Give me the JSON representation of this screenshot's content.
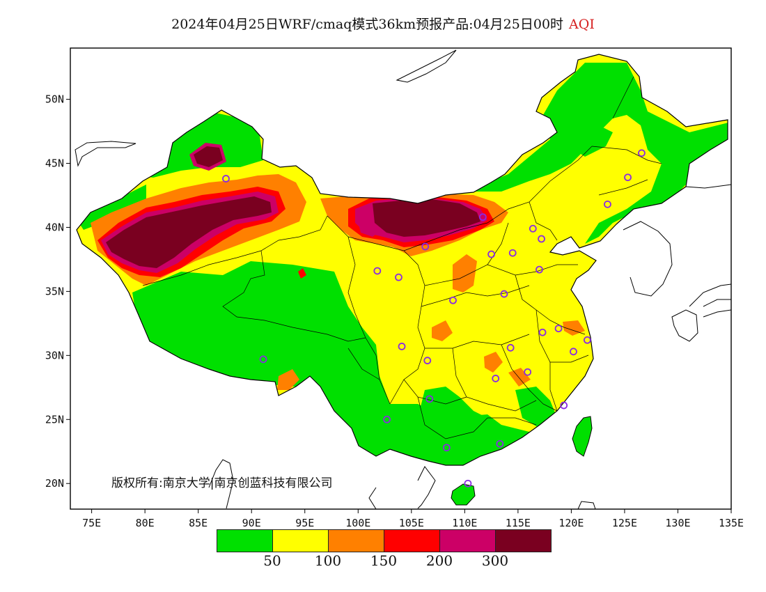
{
  "title": {
    "main": "2024年04月25日WRF/cmaq模式36km预报产品:04月25日00时",
    "highlight": "AQI"
  },
  "axes": {
    "lat_ticks": [
      "20N",
      "25N",
      "30N",
      "35N",
      "40N",
      "45N",
      "50N"
    ],
    "lon_ticks": [
      "75E",
      "80E",
      "85E",
      "90E",
      "95E",
      "100E",
      "105E",
      "110E",
      "115E",
      "120E",
      "125E",
      "130E",
      "135E"
    ],
    "lon_range": [
      73,
      135
    ],
    "lat_range": [
      18,
      54
    ]
  },
  "copyright": "版权所有:南京大学|南京创蓝科技有限公司",
  "legend": {
    "colors": [
      "#00e000",
      "#ffff00",
      "#ff8000",
      "#ff0000",
      "#cc0066",
      "#7a0020"
    ],
    "labels": [
      "50",
      "100",
      "150",
      "200",
      "300"
    ]
  },
  "colors": {
    "good": "#00e000",
    "moderate": "#ffff00",
    "unhealthy_sensitive": "#ff8000",
    "unhealthy": "#ff0000",
    "very_unhealthy": "#cc0066",
    "hazardous": "#7a0020",
    "station_marker": "#8a2be2"
  },
  "station_markers": [
    [
      87.6,
      43.8
    ],
    [
      91.1,
      29.7
    ],
    [
      101.8,
      36.6
    ],
    [
      103.8,
      36.1
    ],
    [
      106.3,
      38.5
    ],
    [
      111.7,
      40.8
    ],
    [
      116.4,
      39.9
    ],
    [
      117.2,
      39.1
    ],
    [
      114.5,
      38.0
    ],
    [
      112.5,
      37.9
    ],
    [
      117.0,
      36.7
    ],
    [
      113.7,
      34.8
    ],
    [
      108.9,
      34.3
    ],
    [
      104.1,
      30.7
    ],
    [
      106.5,
      29.6
    ],
    [
      114.3,
      30.6
    ],
    [
      117.3,
      31.8
    ],
    [
      118.8,
      32.1
    ],
    [
      120.2,
      30.3
    ],
    [
      121.5,
      31.2
    ],
    [
      112.9,
      28.2
    ],
    [
      115.9,
      28.7
    ],
    [
      119.3,
      26.1
    ],
    [
      106.7,
      26.6
    ],
    [
      102.7,
      25.0
    ],
    [
      108.3,
      22.8
    ],
    [
      113.3,
      23.1
    ],
    [
      110.3,
      20.0
    ],
    [
      123.4,
      41.8
    ],
    [
      125.3,
      43.9
    ],
    [
      126.6,
      45.8
    ]
  ]
}
